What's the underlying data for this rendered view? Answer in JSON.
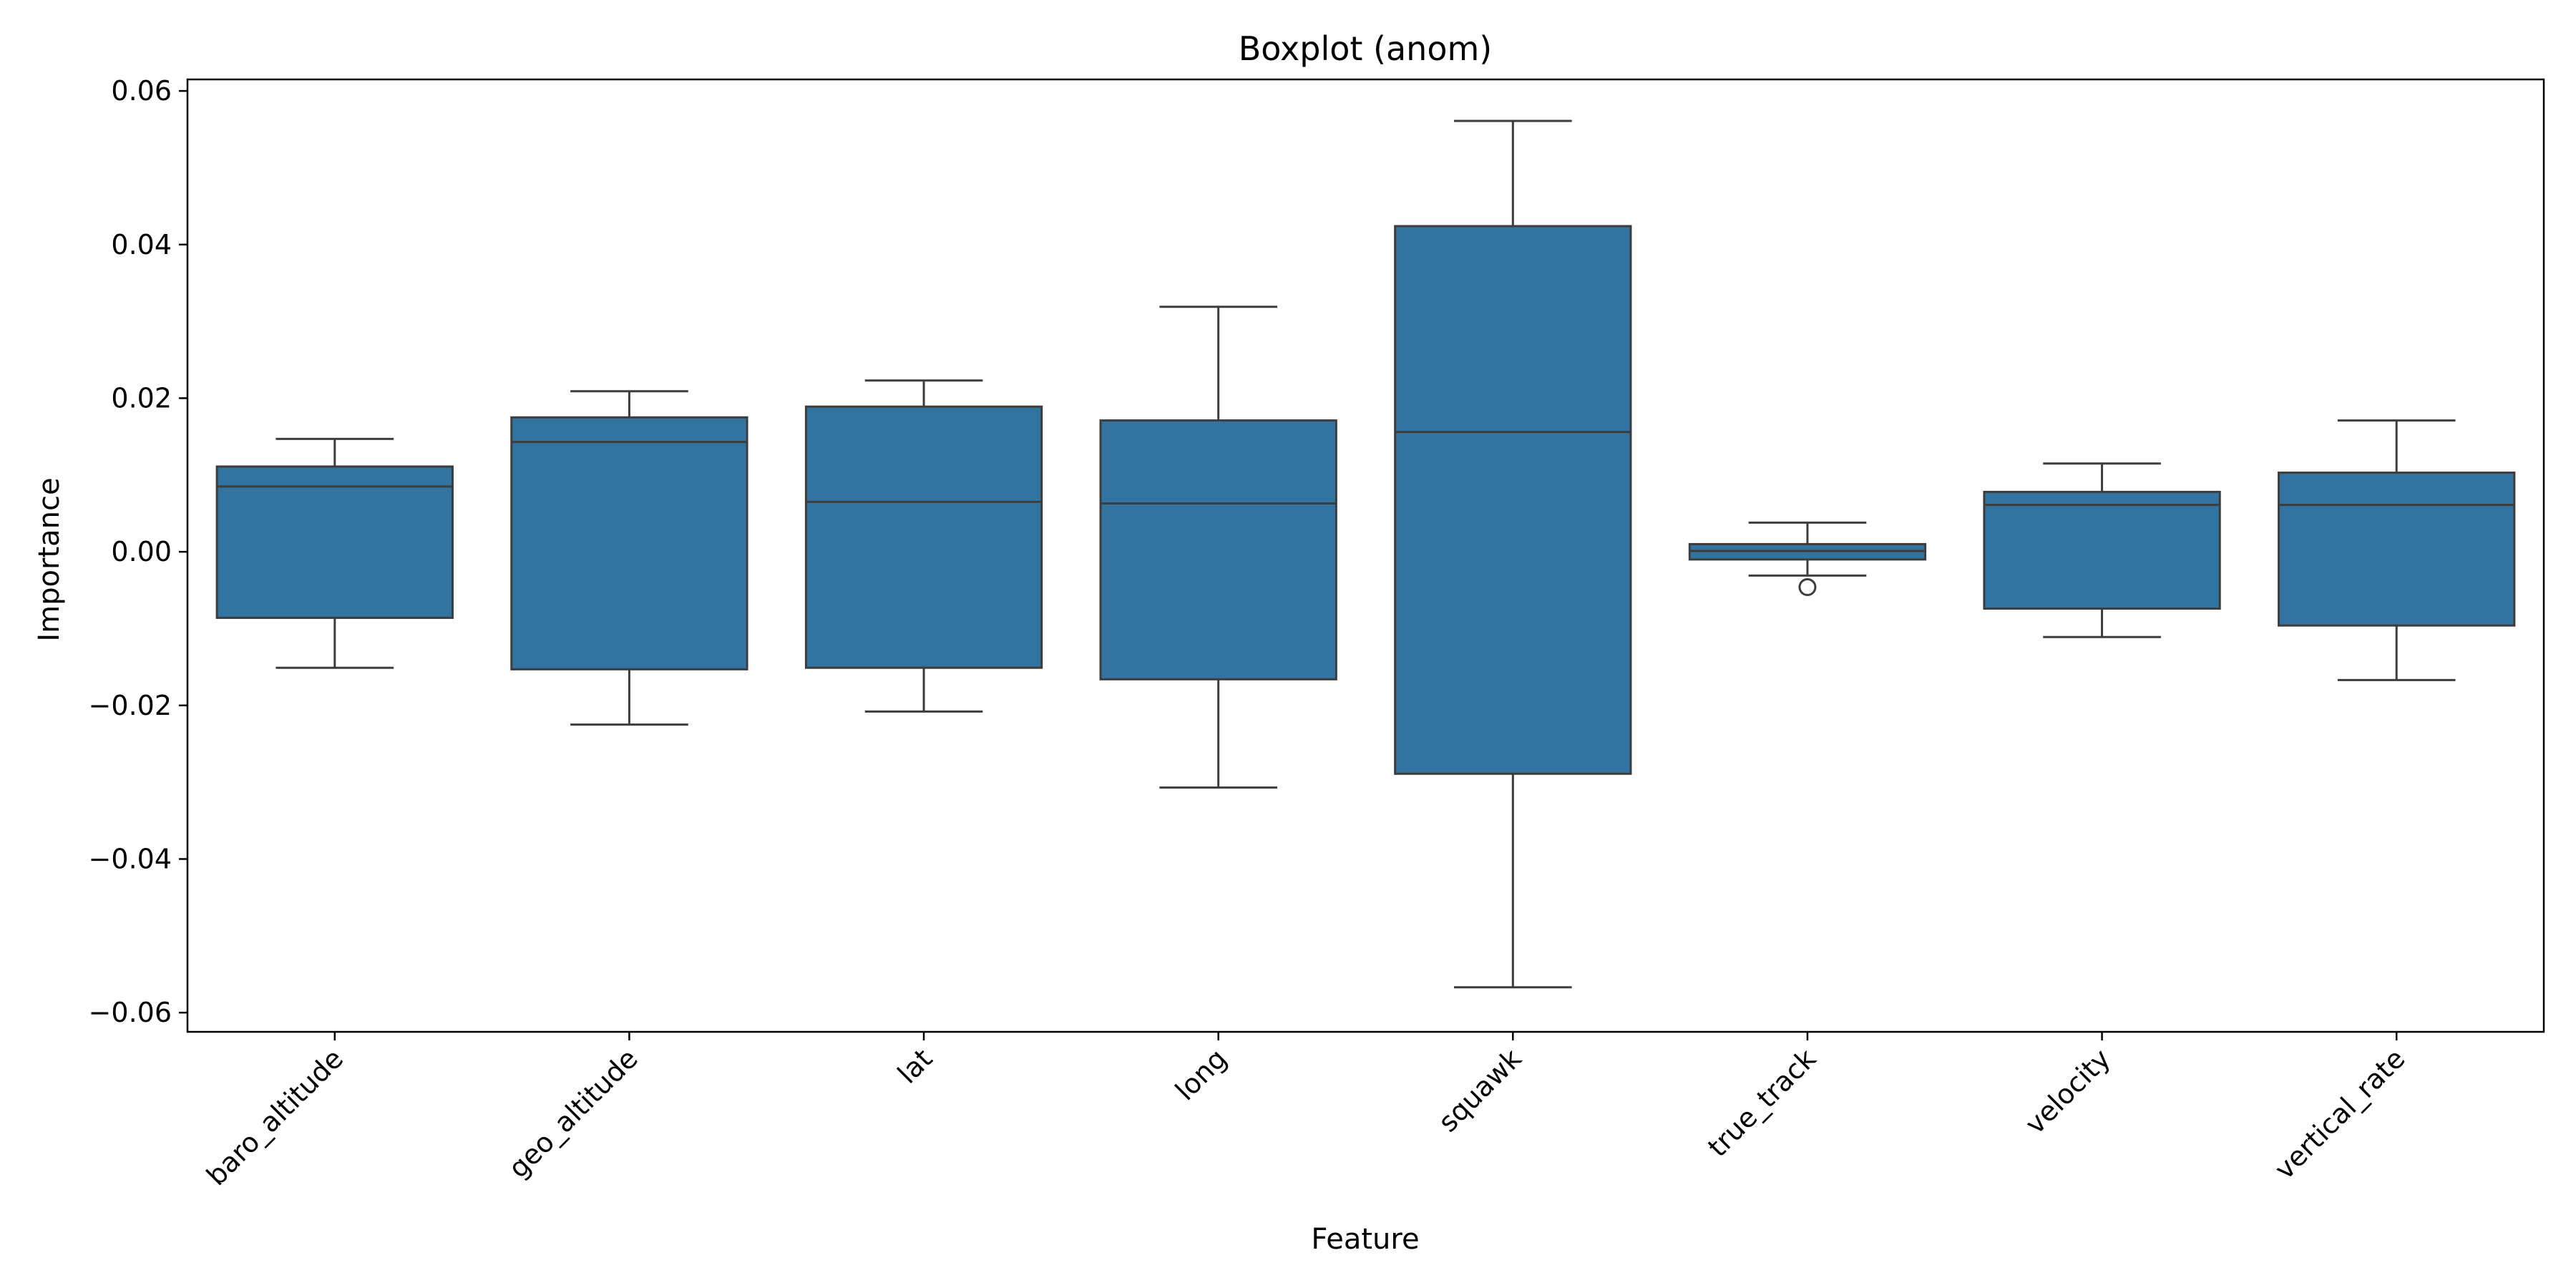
{
  "chart_data": {
    "type": "boxplot",
    "title": "Boxplot (anom)",
    "xlabel": "Feature",
    "ylabel": "Importance",
    "ylim": [
      -0.0625,
      0.0615
    ],
    "yticks": [
      -0.06,
      -0.04,
      -0.02,
      0.0,
      0.02,
      0.04,
      0.06
    ],
    "ytick_labels": [
      "−0.06",
      "−0.04",
      "−0.02",
      "0.00",
      "0.02",
      "0.04",
      "0.06"
    ],
    "grid": false,
    "box_color": "#3274a1",
    "line_color": "#3d3d3d",
    "categories": [
      "baro_altitude",
      "geo_altitude",
      "lat",
      "long",
      "squawk",
      "true_track",
      "velocity",
      "vertical_rate"
    ],
    "boxes": [
      {
        "whisker_low": -0.0151,
        "q1": -0.0086,
        "median": 0.0085,
        "q3": 0.0111,
        "whisker_high": 0.0147,
        "outliers": []
      },
      {
        "whisker_low": -0.0225,
        "q1": -0.0153,
        "median": 0.0143,
        "q3": 0.0175,
        "whisker_high": 0.0209,
        "outliers": []
      },
      {
        "whisker_low": -0.0208,
        "q1": -0.0151,
        "median": 0.0065,
        "q3": 0.0189,
        "whisker_high": 0.0223,
        "outliers": []
      },
      {
        "whisker_low": -0.0307,
        "q1": -0.0166,
        "median": 0.0063,
        "q3": 0.0171,
        "whisker_high": 0.0319,
        "outliers": []
      },
      {
        "whisker_low": -0.0567,
        "q1": -0.0289,
        "median": 0.0156,
        "q3": 0.0424,
        "whisker_high": 0.0561,
        "outliers": []
      },
      {
        "whisker_low": -0.0031,
        "q1": -0.001,
        "median": 0.0001,
        "q3": 0.001,
        "whisker_high": 0.0038,
        "outliers": [
          -0.0046
        ]
      },
      {
        "whisker_low": -0.0111,
        "q1": -0.0074,
        "median": 0.0061,
        "q3": 0.0078,
        "whisker_high": 0.0115,
        "outliers": []
      },
      {
        "whisker_low": -0.0167,
        "q1": -0.0096,
        "median": 0.0061,
        "q3": 0.0103,
        "whisker_high": 0.0171,
        "outliers": []
      }
    ]
  }
}
